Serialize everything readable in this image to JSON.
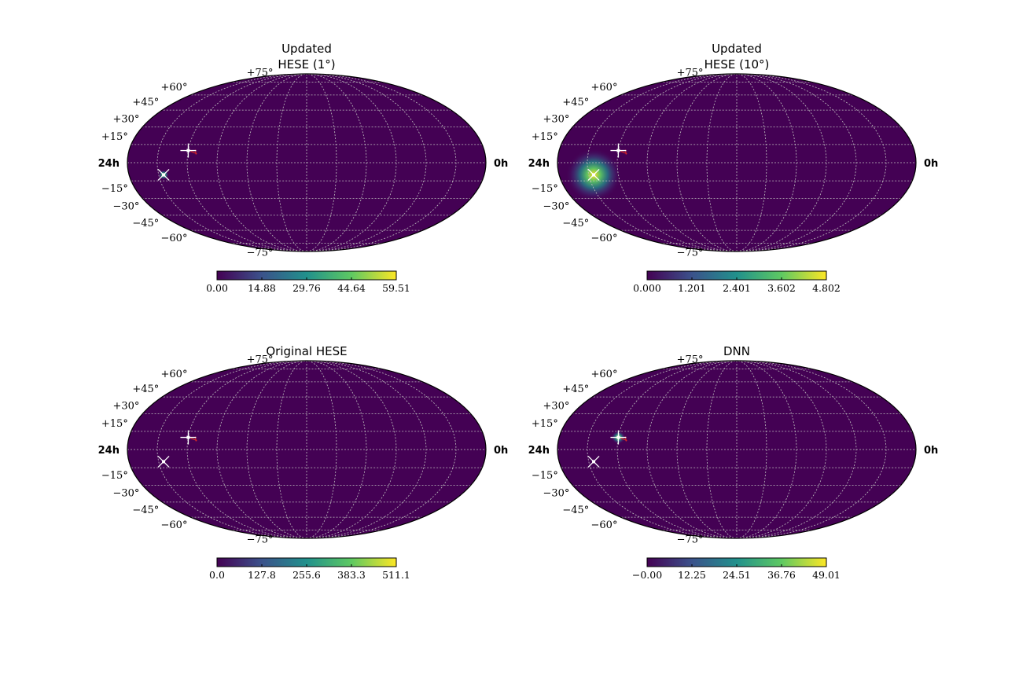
{
  "colors": {
    "background": "#440154",
    "grid": "#bfbfbf",
    "marker": "#ffffff",
    "marker_alt": "#d62728",
    "colormap": [
      "#440154",
      "#3b528b",
      "#21918c",
      "#5ec962",
      "#fde725"
    ]
  },
  "chart_data": [
    {
      "type": "heatmap",
      "projection": "mollweide",
      "title_lines": [
        "Updated",
        "HESE (1°)"
      ],
      "ra_labels": [
        "24h",
        "0h"
      ],
      "dec_labels": [
        "+75°",
        "+60°",
        "+45°",
        "+30°",
        "+15°",
        "−15°",
        "−30°",
        "−45°",
        "−60°",
        "−75°"
      ],
      "grid": true,
      "colorbar": {
        "ticks": [
          "0.00",
          "14.88",
          "29.76",
          "44.64",
          "59.51"
        ],
        "min": 0.0,
        "max": 59.51
      },
      "hotspot": {
        "at": "marker_x",
        "sigma_deg": 1.5,
        "peak": 1.0
      },
      "markers": [
        {
          "kind": "cross",
          "ra_deg": 300,
          "dec_deg": 10
        },
        {
          "kind": "x",
          "ra_deg": 325,
          "dec_deg": -10
        }
      ]
    },
    {
      "type": "heatmap",
      "projection": "mollweide",
      "title_lines": [
        "Updated",
        "HESE (10°)"
      ],
      "ra_labels": [
        "24h",
        "0h"
      ],
      "dec_labels": [
        "+75°",
        "+60°",
        "+45°",
        "+30°",
        "+15°",
        "−15°",
        "−30°",
        "−45°",
        "−60°",
        "−75°"
      ],
      "grid": true,
      "colorbar": {
        "ticks": [
          "0.000",
          "1.201",
          "2.401",
          "3.602",
          "4.802"
        ],
        "min": 0.0,
        "max": 4.802
      },
      "hotspot": {
        "at": "marker_x",
        "sigma_deg": 8,
        "peak": 1.0
      },
      "markers": [
        {
          "kind": "cross",
          "ra_deg": 300,
          "dec_deg": 10
        },
        {
          "kind": "x",
          "ra_deg": 325,
          "dec_deg": -10
        }
      ]
    },
    {
      "type": "heatmap",
      "projection": "mollweide",
      "title_lines": [
        "Original HESE"
      ],
      "ra_labels": [
        "24h",
        "0h"
      ],
      "dec_labels": [
        "+75°",
        "+60°",
        "+45°",
        "+30°",
        "+15°",
        "−15°",
        "−30°",
        "−45°",
        "−60°",
        "−75°"
      ],
      "grid": true,
      "colorbar": {
        "ticks": [
          "0.0",
          "127.8",
          "255.6",
          "383.3",
          "511.1"
        ],
        "min": 0.0,
        "max": 511.1
      },
      "hotspot": null,
      "markers": [
        {
          "kind": "cross",
          "ra_deg": 300,
          "dec_deg": 10
        },
        {
          "kind": "x",
          "ra_deg": 325,
          "dec_deg": -10
        }
      ]
    },
    {
      "type": "heatmap",
      "projection": "mollweide",
      "title_lines": [
        "DNN"
      ],
      "ra_labels": [
        "24h",
        "0h"
      ],
      "dec_labels": [
        "+75°",
        "+60°",
        "+45°",
        "+30°",
        "+15°",
        "−15°",
        "−30°",
        "−45°",
        "−60°",
        "−75°"
      ],
      "grid": true,
      "colorbar": {
        "ticks": [
          "−0.00",
          "12.25",
          "24.51",
          "36.76",
          "49.01"
        ],
        "min": 0.0,
        "max": 49.01
      },
      "hotspot": {
        "at": "marker_cross",
        "sigma_deg": 2,
        "peak": 1.0
      },
      "markers": [
        {
          "kind": "cross",
          "ra_deg": 300,
          "dec_deg": 10
        },
        {
          "kind": "x",
          "ra_deg": 325,
          "dec_deg": -10
        }
      ]
    }
  ]
}
